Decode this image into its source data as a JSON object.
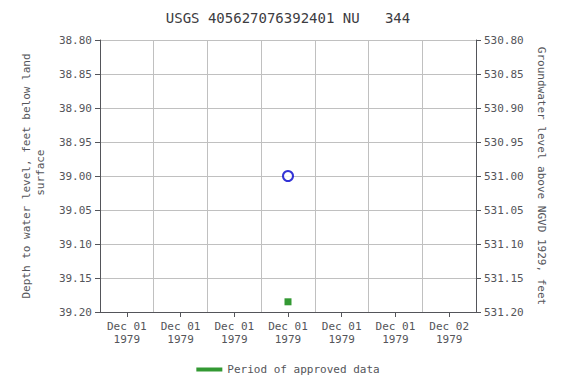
{
  "chart_data": {
    "type": "scatter",
    "title": "USGS 405627076392401 NU   344",
    "categories": [
      "Dec 01\n1979",
      "Dec 01\n1979",
      "Dec 01\n1979",
      "Dec 01\n1979",
      "Dec 01\n1979",
      "Dec 01\n1979",
      "Dec 02\n1979"
    ],
    "ylabel": "Depth to water level, feet below land\n surface",
    "y2label": "Groundwater level above NGVD 1929, feet",
    "ylim": [
      39.2,
      38.8
    ],
    "yticks": [
      {
        "value": 38.8,
        "label": "38.80"
      },
      {
        "value": 38.85,
        "label": "38.85"
      },
      {
        "value": 38.9,
        "label": "38.90"
      },
      {
        "value": 38.95,
        "label": "38.95"
      },
      {
        "value": 39.0,
        "label": "39.00"
      },
      {
        "value": 39.05,
        "label": "39.05"
      },
      {
        "value": 39.1,
        "label": "39.10"
      },
      {
        "value": 39.15,
        "label": "39.15"
      },
      {
        "value": 39.2,
        "label": "39.20"
      }
    ],
    "y2lim": [
      531.2,
      530.8
    ],
    "y2ticks": [
      {
        "value": 530.8,
        "label": "530.80"
      },
      {
        "value": 530.85,
        "label": "530.85"
      },
      {
        "value": 530.9,
        "label": "530.90"
      },
      {
        "value": 530.95,
        "label": "530.95"
      },
      {
        "value": 531.0,
        "label": "531.00"
      },
      {
        "value": 531.05,
        "label": "531.05"
      },
      {
        "value": 531.1,
        "label": "531.10"
      },
      {
        "value": 531.15,
        "label": "531.15"
      },
      {
        "value": 531.2,
        "label": "531.20"
      }
    ],
    "series": [
      {
        "color": "#0000cc",
        "marker": "open_circle",
        "values": [
          null,
          null,
          null,
          39.0,
          null,
          null,
          null
        ]
      },
      {
        "name": "Period of approved data",
        "color": "#008000",
        "marker": "square",
        "values": [
          null,
          null,
          null,
          39.185,
          null,
          null,
          null
        ]
      }
    ],
    "grid": true,
    "legend": "bottom"
  }
}
